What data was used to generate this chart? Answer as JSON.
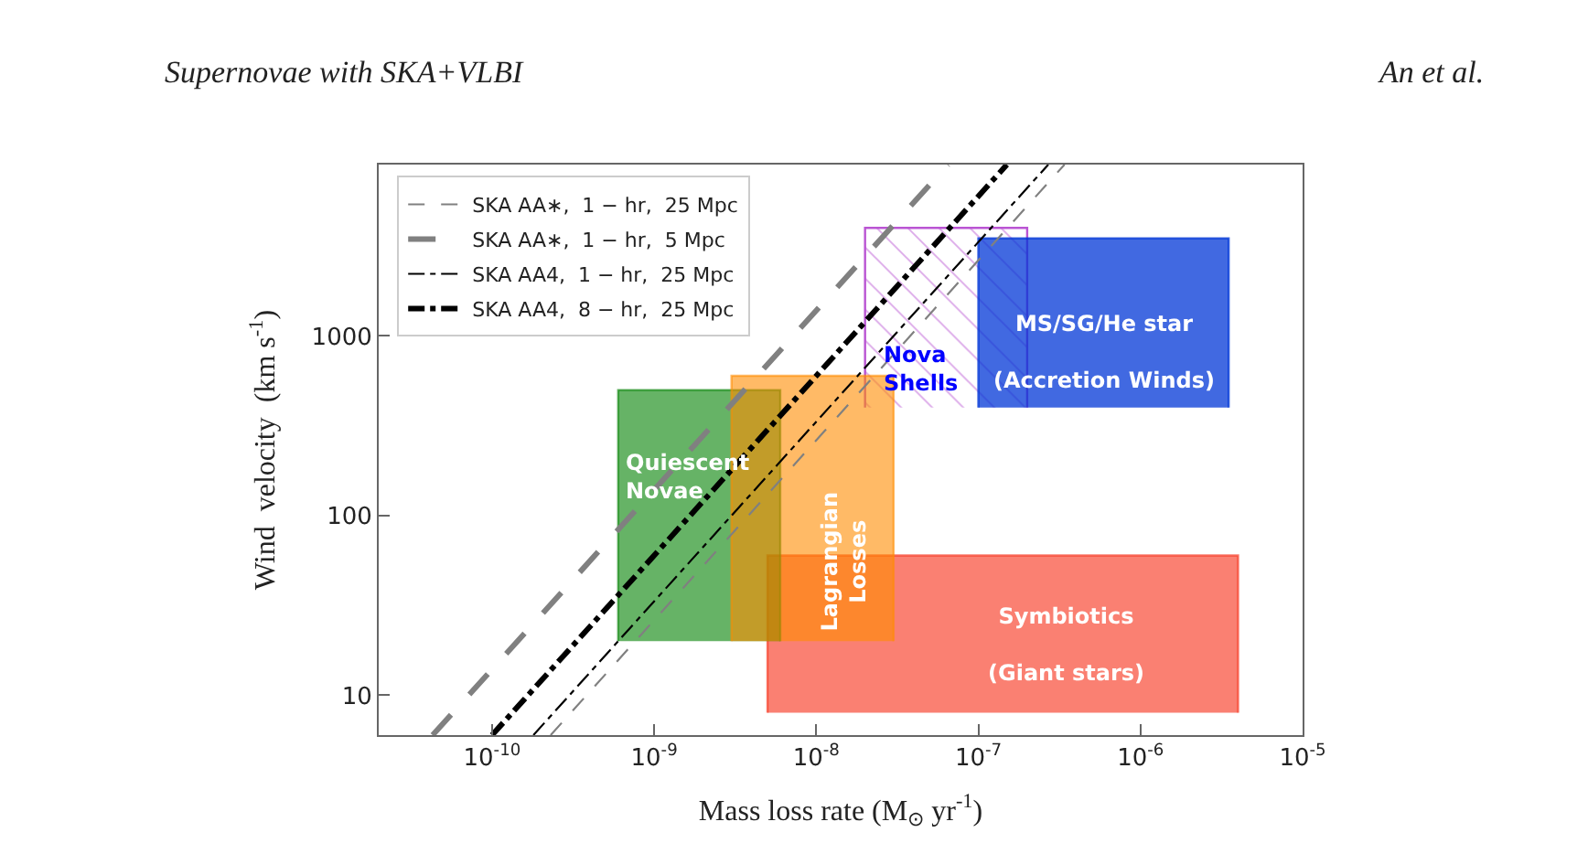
{
  "chart_data": {
    "type": "line",
    "xlabel": "Mass loss rate (M$_{⊙}$ yr$^{-1}$)",
    "ylabel": "Wind  velocity  (km s$^{-1}$)",
    "log": "xy",
    "legend": "top left",
    "xlim": [
      2e-11,
      1e-05
    ],
    "xticks": [
      {
        "value": 1e-10,
        "label": "10$^{-10}$"
      },
      {
        "value": 1e-09,
        "label": "10$^{-9}$"
      },
      {
        "value": 1e-08,
        "label": "10$^{-8}$"
      },
      {
        "value": 1e-07,
        "label": "10$^{-7}$"
      },
      {
        "value": 1e-06,
        "label": "10$^{-6}$"
      },
      {
        "value": 1e-05,
        "label": "10$^{-5}$"
      }
    ],
    "ylim": [
      6,
      9000
    ],
    "yticks": [
      10,
      100,
      1000
    ],
    "series": [
      {
        "type": "area",
        "color": "#fa8072",
        "x": [
          5e-09,
          5e-09,
          4e-06,
          4e-06
        ],
        "values": [
          8,
          60,
          60,
          8
        ]
      },
      {
        "type": "area",
        "color": "#ba55d3",
        "x": [
          2e-08,
          2e-08,
          2e-07,
          2e-07
        ],
        "values": [
          400,
          4000,
          4000,
          400
        ]
      },
      {
        "type": "area",
        "color": "#4169e1",
        "x": [
          1e-07,
          1e-07,
          3.5e-06,
          3.5e-06
        ],
        "values": [
          400,
          3500,
          3500,
          400
        ]
      },
      {
        "type": "area",
        "color": "#66b366",
        "x": [
          6e-10,
          6e-10,
          6e-09,
          6e-09
        ],
        "values": [
          20,
          500,
          500,
          20
        ]
      },
      {
        "type": "area",
        "color": "#ffba66",
        "x": [
          3e-09,
          3e-09,
          3e-08,
          3e-08
        ],
        "values": [
          20,
          600,
          600,
          20
        ]
      },
      {
        "name": "SKA AA∗,  1 − hr,  25 Mpc",
        "color": "#808080",
        "line_style": "dashed",
        "x": [
          2.3e-10,
          3.4e-07
        ],
        "values": [
          6,
          9000
        ]
      },
      {
        "name": "SKA AA∗,  1 − hr,  5 Mpc",
        "color": "#808080",
        "line_style": "dashed",
        "x": [
          4.3e-11,
          6.5e-08
        ],
        "values": [
          6,
          9000
        ]
      },
      {
        "name": "SKA AA4,  1 − hr,  25 Mpc",
        "color": "#000000",
        "line_style": "dashdot",
        "x": [
          1.8e-10,
          2.7e-07
        ],
        "values": [
          6,
          9000
        ]
      },
      {
        "name": "SKA AA4,  8 − hr,  25 Mpc",
        "color": "#000000",
        "line_style": "dashdot",
        "x": [
          1e-10,
          1.5e-07
        ],
        "values": [
          6,
          9000
        ]
      }
    ],
    "annotations": [
      "Supernovae with SKA+VLBI",
      "An et al.",
      "Symbiotics\n\n(Giant stars)",
      "MS/SG/He star\n\n(Accretion Winds)",
      {
        "text": "Quiescent\nNovae",
        "x": 6.3e-10,
        "y": 165
      },
      {
        "text": "Lagrangian\nLosses",
        "x": 1.5e-08,
        "y": 55
      },
      {
        "text": "Nova\nShells",
        "x": 2.5e-08,
        "y": 650
      }
    ]
  }
}
